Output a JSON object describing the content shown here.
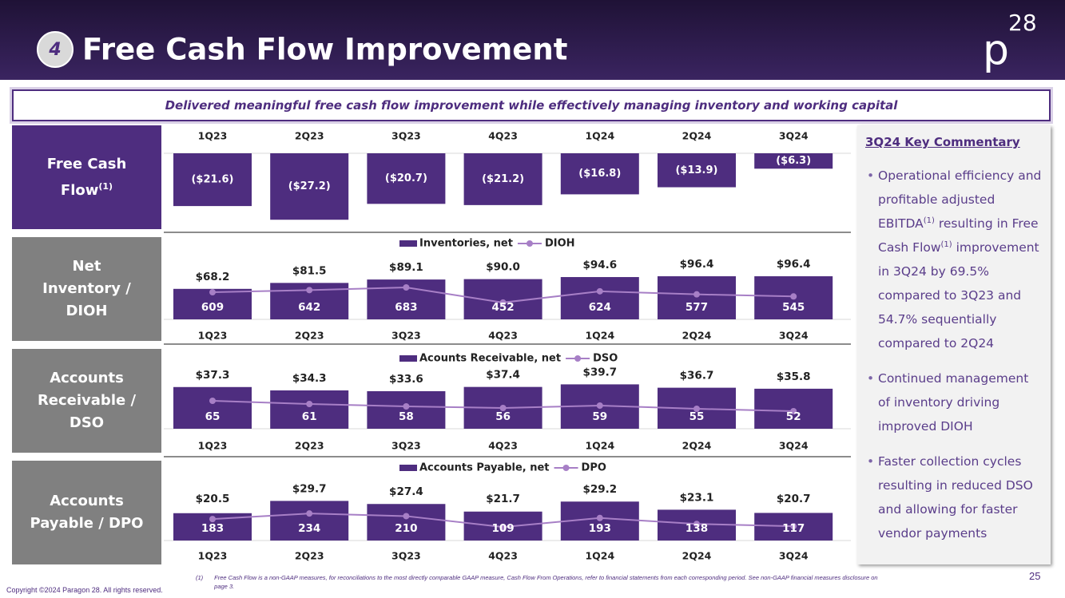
{
  "header": {
    "badge": "4",
    "title": "Free Cash Flow Improvement",
    "logo": {
      "main": "p",
      "sup": "28"
    }
  },
  "banner": "Delivered meaningful free cash flow improvement while effectively managing inventory and working capital",
  "row_labels": [
    {
      "text": "Free Cash Flow",
      "sup": "(1)"
    },
    {
      "text": "Net Inventory / DIOH"
    },
    {
      "text": "Accounts Receivable / DSO"
    },
    {
      "text": "Accounts Payable / DPO"
    }
  ],
  "chart_data": [
    {
      "type": "bar",
      "categories": [
        "1Q23",
        "2Q23",
        "3Q23",
        "4Q23",
        "1Q24",
        "2Q24",
        "3Q24"
      ],
      "values": [
        -21.6,
        -27.2,
        -20.7,
        -21.2,
        -16.8,
        -13.9,
        -6.3
      ],
      "value_labels": [
        "($21.6)",
        "($27.2)",
        "($20.7)",
        "($21.2)",
        "($16.8)",
        "($13.9)",
        "($6.3)"
      ],
      "color": "#4e2d7f"
    },
    {
      "type": "bar_line",
      "categories": [
        "1Q23",
        "2Q23",
        "3Q23",
        "4Q23",
        "1Q24",
        "2Q24",
        "3Q24"
      ],
      "series": [
        {
          "name": "Inventories, net",
          "color": "#4e2d7f",
          "values": [
            68.2,
            81.5,
            89.1,
            90.0,
            94.6,
            96.4,
            96.4
          ],
          "value_labels": [
            "$68.2",
            "$81.5",
            "$89.1",
            "$90.0",
            "$94.6",
            "$96.4",
            "$96.4"
          ]
        },
        {
          "name": "DIOH",
          "color": "#a77fc6",
          "axis": "y2",
          "values": [
            609,
            642,
            683,
            452,
            624,
            577,
            545
          ]
        }
      ]
    },
    {
      "type": "bar_line",
      "categories": [
        "1Q23",
        "2Q23",
        "3Q23",
        "4Q23",
        "1Q24",
        "2Q24",
        "3Q24"
      ],
      "series": [
        {
          "name": "Acounts Receivable, net",
          "color": "#4e2d7f",
          "values": [
            37.3,
            34.3,
            33.6,
            37.4,
            39.7,
            36.7,
            35.8
          ],
          "value_labels": [
            "$37.3",
            "$34.3",
            "$33.6",
            "$37.4",
            "$39.7",
            "$36.7",
            "$35.8"
          ]
        },
        {
          "name": "DSO",
          "color": "#a77fc6",
          "axis": "y2",
          "values": [
            65,
            61,
            58,
            56,
            59,
            55,
            52
          ]
        }
      ]
    },
    {
      "type": "bar_line",
      "categories": [
        "1Q23",
        "2Q23",
        "3Q23",
        "4Q23",
        "1Q24",
        "2Q24",
        "3Q24"
      ],
      "series": [
        {
          "name": "Accounts Payable, net",
          "color": "#4e2d7f",
          "values": [
            20.5,
            29.7,
            27.4,
            21.7,
            29.2,
            23.1,
            20.7
          ],
          "value_labels": [
            "$20.5",
            "$29.7",
            "$27.4",
            "$21.7",
            "$29.2",
            "$23.1",
            "$20.7"
          ]
        },
        {
          "name": "DPO",
          "color": "#a77fc6",
          "axis": "y2",
          "values": [
            183,
            234,
            210,
            109,
            193,
            138,
            117
          ]
        }
      ]
    }
  ],
  "commentary": {
    "title": "3Q24 Key Commentary",
    "bullets": [
      [
        "Operational efficiency and profitable adjusted EBITDA",
        "(1)",
        " resulting in Free Cash Flow",
        "(1)",
        " improvement in 3Q24 by 69.5% compared to 3Q23 and 54.7% sequentially compared to 2Q24"
      ],
      [
        "Continued management of inventory driving improved DIOH"
      ],
      [
        "Faster collection cycles resulting in reduced DSO and allowing for faster vendor payments"
      ]
    ]
  },
  "footnote": {
    "marker": "(1)",
    "text": "Free Cash Flow is a non-GAAP measures, for reconciliations to the most directly comparable GAAP measure, Cash Flow From Operations, refer to financial statements from each corresponding period. See non-GAAP financial measures disclosure on page 3."
  },
  "copyright": "Copyright ©2024 Paragon 28. All rights reserved.",
  "page_number": "25"
}
